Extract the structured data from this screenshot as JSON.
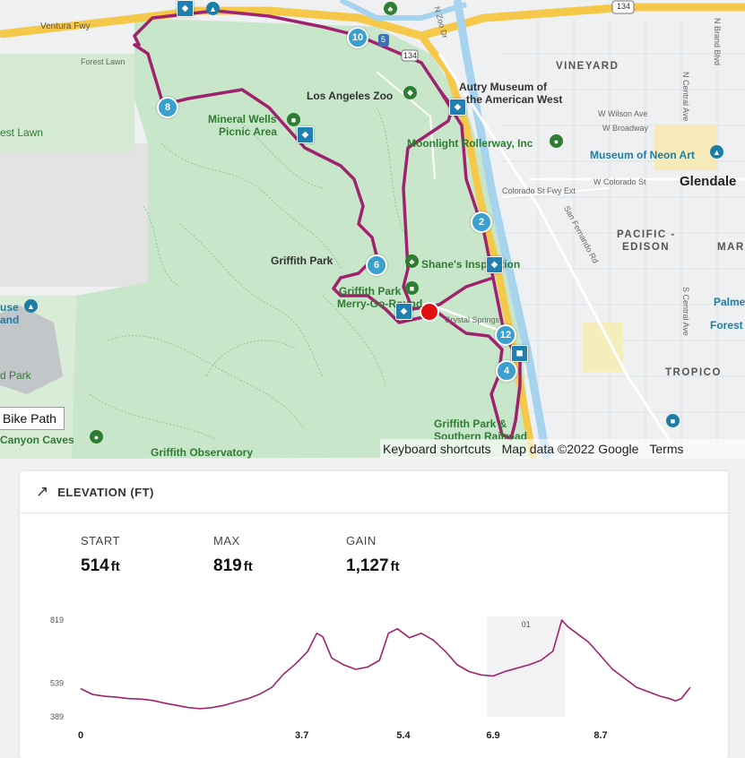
{
  "map": {
    "labels": {
      "ventura_fwy": "Ventura Fwy",
      "forest_lawn_road": "Forest Lawn",
      "est_lawn": "est Lawn",
      "los_angeles_zoo": "Los Angeles Zoo",
      "autry_museum_1": "Autry Museum of",
      "autry_museum_2": "the American West",
      "mineral_wells_1": "Mineral Wells",
      "mineral_wells_2": "Picnic Area",
      "moonlight_rollerway": "Moonlight Rollerway, Inc",
      "museum_neon_art": "Museum of Neon Art",
      "glendale": "Glendale",
      "vineyard": "VINEYARD",
      "w_wilson_ave": "W Wilson Ave",
      "w_broadway": "W Broadway",
      "w_colorado_st": "W Colorado St",
      "colorado_fwy_ext": "Colorado St Fwy Ext",
      "san_fernando_rd": "San Fernando Rd",
      "pacific_edison_1": "PACIFIC -",
      "pacific_edison_2": "EDISON",
      "mar": "MAR",
      "griffith_park": "Griffith Park",
      "shanes_inspiration": "Shane's Inspiration",
      "griffith_park_merry_1": "Griffith Park",
      "griffith_park_merry_2": "Merry-Go-Round",
      "crystal_springs": "Crystal Springs",
      "house": "use",
      "land": "and",
      "d_park": "d Park",
      "canyon_caves": "Canyon Caves",
      "griffith_observatory": "Griffith Observatory",
      "griffith_park_southern_1": "Griffith Park &",
      "griffith_park_southern_2": "Southern Railroad",
      "tropico": "TROPICO",
      "palme": "Palme",
      "forest": "Forest",
      "n_zoo_dr": "N Zoo Dr",
      "n_brand_blvd": "N Brand Blvd",
      "n_central_ave": "N Central Ave",
      "s_central_ave": "S Central Ave",
      "hwy_134": "134",
      "hwy_5": "5"
    },
    "route_markers": [
      "10",
      "8",
      "6",
      "2",
      "12",
      "4"
    ],
    "bike_path_label": "Bike Path",
    "attribution": {
      "keyboard_shortcuts": "Keyboard shortcuts",
      "map_data": "Map data ©2022 Google",
      "terms": "Terms"
    },
    "colors": {
      "park": "#c8e6c9",
      "route": "#a0226e",
      "water": "#a6d3ee",
      "freeway": "#f6c84a",
      "marker": "#3aa0cf"
    }
  },
  "elevation": {
    "header_icon": "trend-arrow-icon",
    "title": "ELEVATION (FT)",
    "stats": [
      {
        "label": "START",
        "value": "514",
        "unit": "ft"
      },
      {
        "label": "MAX",
        "value": "819",
        "unit": "ft"
      },
      {
        "label": "GAIN",
        "value": "1,127",
        "unit": "ft"
      }
    ],
    "highlight_label": "01"
  },
  "chart_data": {
    "type": "line",
    "xlabel": "",
    "ylabel": "",
    "y_ticks": [
      819,
      539,
      389
    ],
    "ylim": [
      389,
      819
    ],
    "x_ticks": [
      "0",
      "3.7",
      "5.4",
      "6.9",
      "8.7"
    ],
    "x_tick_values": [
      0,
      3.7,
      5.4,
      6.9,
      8.7
    ],
    "xlim": [
      0,
      10.2
    ],
    "highlight_range": [
      6.8,
      8.1
    ],
    "series": [
      {
        "values": [
          [
            0.0,
            514
          ],
          [
            0.2,
            488
          ],
          [
            0.4,
            480
          ],
          [
            0.6,
            476
          ],
          [
            0.8,
            470
          ],
          [
            1.0,
            468
          ],
          [
            1.2,
            462
          ],
          [
            1.4,
            450
          ],
          [
            1.6,
            440
          ],
          [
            1.8,
            430
          ],
          [
            2.0,
            425
          ],
          [
            2.2,
            430
          ],
          [
            2.4,
            440
          ],
          [
            2.6,
            455
          ],
          [
            2.8,
            470
          ],
          [
            3.0,
            490
          ],
          [
            3.2,
            520
          ],
          [
            3.4,
            580
          ],
          [
            3.6,
            625
          ],
          [
            3.8,
            680
          ],
          [
            3.95,
            760
          ],
          [
            4.05,
            745
          ],
          [
            4.2,
            650
          ],
          [
            4.4,
            620
          ],
          [
            4.6,
            600
          ],
          [
            4.8,
            610
          ],
          [
            5.0,
            640
          ],
          [
            5.15,
            760
          ],
          [
            5.3,
            780
          ],
          [
            5.5,
            740
          ],
          [
            5.7,
            760
          ],
          [
            5.9,
            730
          ],
          [
            6.1,
            680
          ],
          [
            6.3,
            620
          ],
          [
            6.5,
            590
          ],
          [
            6.7,
            575
          ],
          [
            6.9,
            570
          ],
          [
            7.1,
            590
          ],
          [
            7.3,
            605
          ],
          [
            7.5,
            620
          ],
          [
            7.7,
            640
          ],
          [
            7.9,
            680
          ],
          [
            8.05,
            819
          ],
          [
            8.15,
            790
          ],
          [
            8.3,
            760
          ],
          [
            8.5,
            720
          ],
          [
            8.7,
            660
          ],
          [
            8.9,
            600
          ],
          [
            9.1,
            560
          ],
          [
            9.3,
            520
          ],
          [
            9.5,
            500
          ],
          [
            9.7,
            480
          ],
          [
            9.85,
            470
          ],
          [
            9.95,
            460
          ],
          [
            10.05,
            470
          ],
          [
            10.2,
            520
          ]
        ]
      }
    ],
    "grid": false,
    "legend": "none"
  }
}
